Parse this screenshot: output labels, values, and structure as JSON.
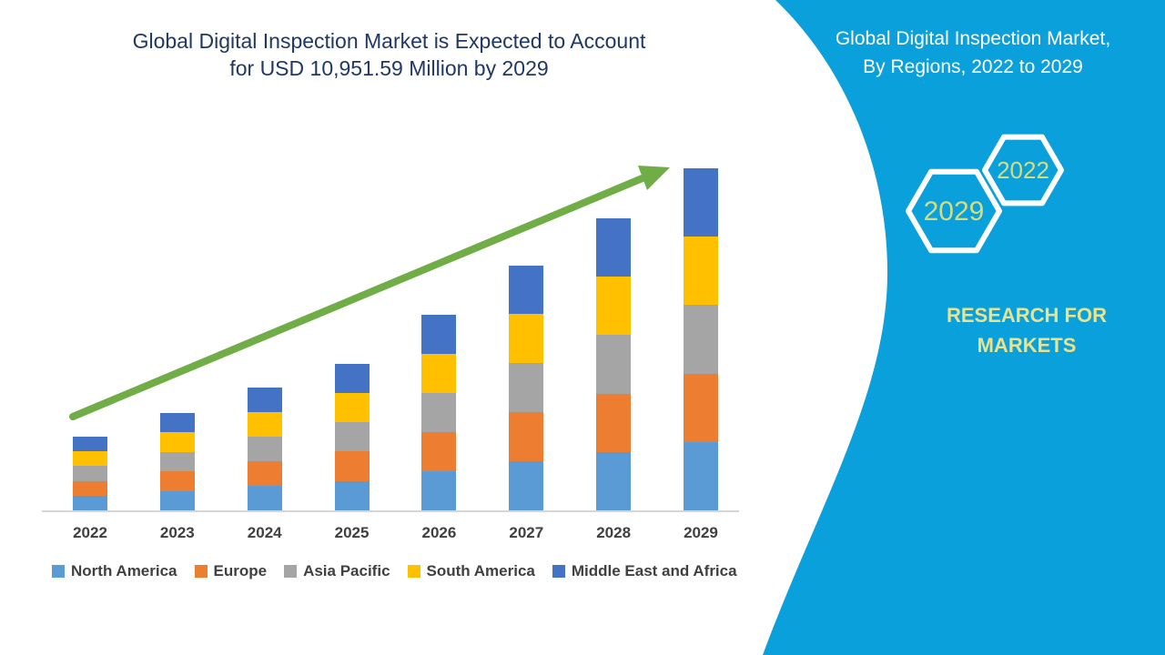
{
  "header": {
    "title_line1": "Global Digital Inspection Market is Expected to Account",
    "title_line2": "for USD 10,951.59 Million by 2029",
    "title_color": "#1F3864"
  },
  "chart_data": {
    "type": "bar",
    "stacked": true,
    "title": "Global Digital Inspection Market is Expected to Account for USD 10,951.59 Million by 2029",
    "unit": "USD Million",
    "categories": [
      "2022",
      "2023",
      "2024",
      "2025",
      "2026",
      "2027",
      "2028",
      "2029"
    ],
    "series": [
      {
        "name": "North America",
        "color": "#5B9BD5",
        "values": [
          472,
          626,
          786,
          941,
          1250,
          1570,
          1870,
          2190.3
        ]
      },
      {
        "name": "Europe",
        "color": "#ED7D31",
        "values": [
          472,
          626,
          786,
          941,
          1250,
          1570,
          1870,
          2190.3
        ]
      },
      {
        "name": "Asia Pacific",
        "color": "#A5A5A5",
        "values": [
          472,
          626,
          786,
          941,
          1250,
          1570,
          1870,
          2190.3
        ]
      },
      {
        "name": "South America",
        "color": "#FFC000",
        "values": [
          472,
          626,
          786,
          941,
          1250,
          1570,
          1870,
          2190.3
        ]
      },
      {
        "name": "Middle East and Africa",
        "color": "#4472C4",
        "values": [
          472,
          626,
          786,
          941,
          1250,
          1570,
          1870,
          2190.3
        ]
      }
    ],
    "totals": [
      2360,
      3130,
      3930,
      4705,
      6250,
      7850,
      9350,
      10951.59
    ],
    "ylim": [
      0,
      11500
    ],
    "grid": false,
    "legend_position": "bottom",
    "axis_line_color": "#D6D6D6",
    "trend_arrow": true,
    "trend_arrow_color": "#70AD47"
  },
  "sidebar": {
    "background": "#0AA0DC",
    "heading_line1": "Global Digital Inspection Market,",
    "heading_line2": "By Regions, 2022 to 2029",
    "heading_color": "#FFFFFF",
    "hexagon_back_label": "2022",
    "hexagon_front_label": "2029",
    "hexagon_stroke_color": "#FFFFFF",
    "hexagon_label_color": "#D6DD7E",
    "brand_line1": "RESEARCH FOR",
    "brand_line2": "MARKETS",
    "brand_color": "#EDE289"
  }
}
